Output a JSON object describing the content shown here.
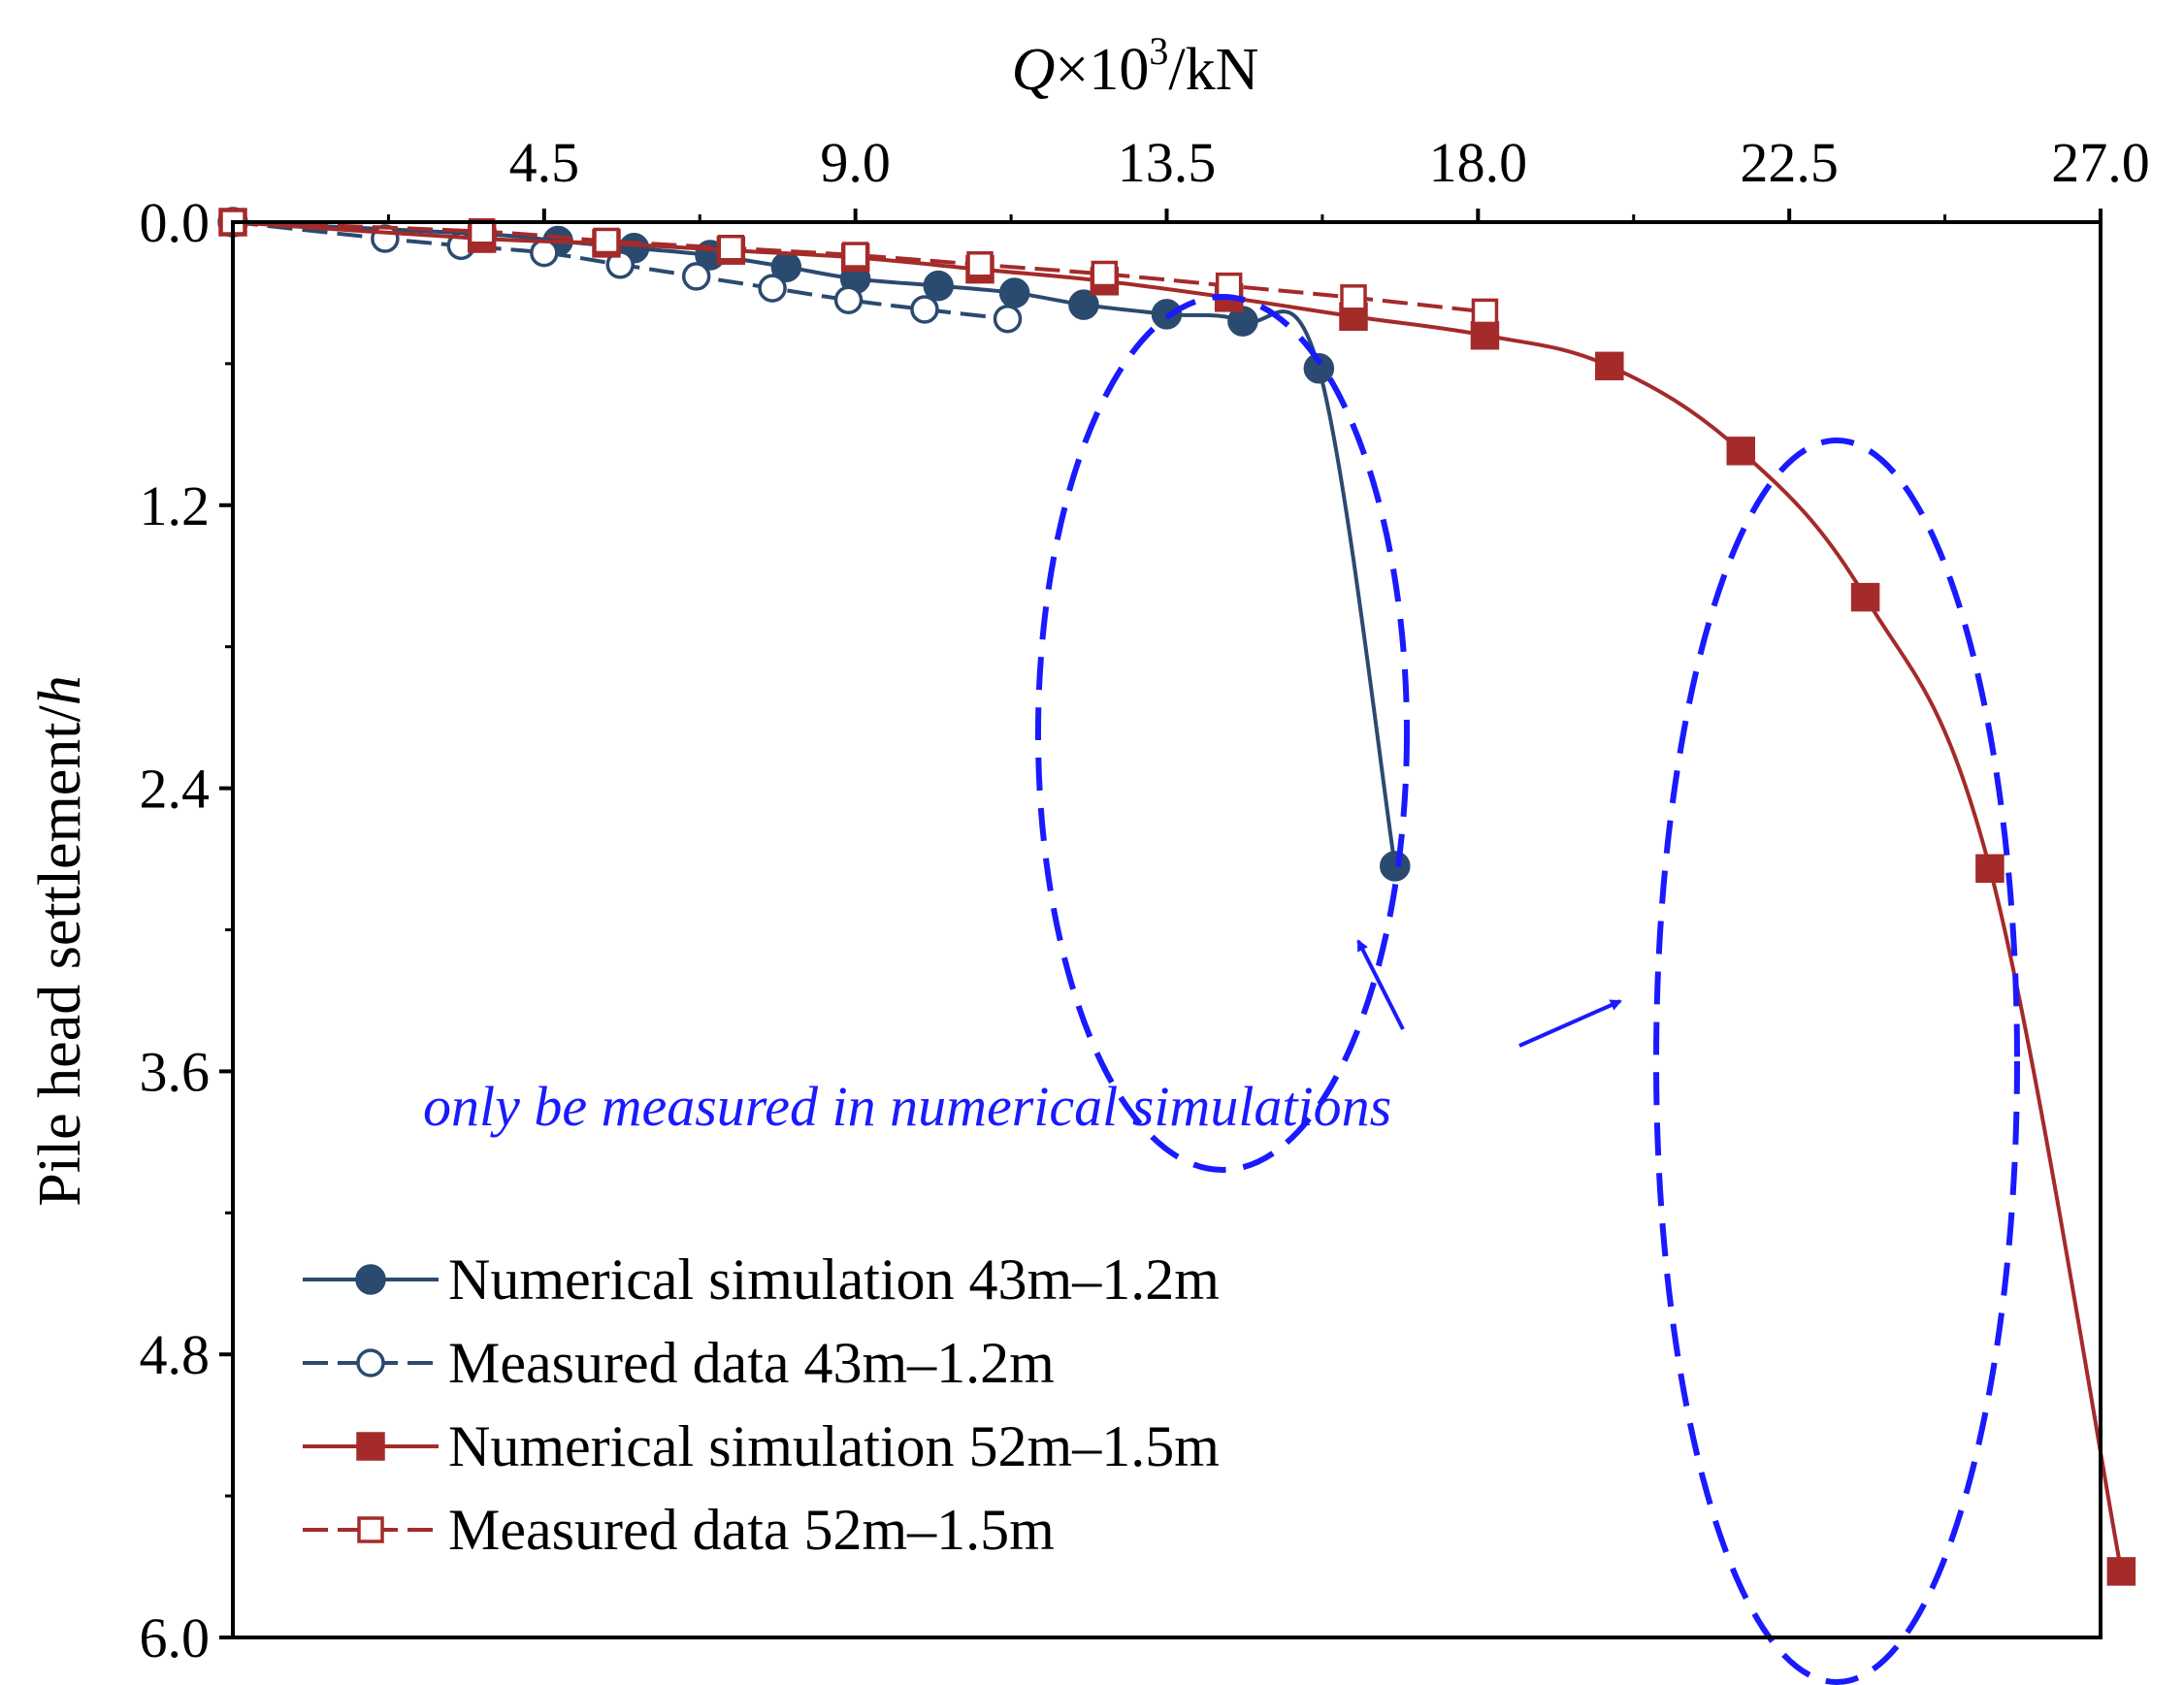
{
  "chart_data": {
    "type": "line",
    "title": "",
    "xlabel": {
      "italic": "Q",
      "mid": "×10",
      "sup": "3",
      "tail": "/kN"
    },
    "ylabel": {
      "main": "Pile head settlement/",
      "italic": "h"
    },
    "xlim": [
      0,
      27
    ],
    "ylim": [
      0,
      6
    ],
    "x_ticks": [
      "4.5",
      "9.0",
      "13.5",
      "18.0",
      "22.5",
      "27.0"
    ],
    "y_ticks": [
      "0.0",
      "1.2",
      "2.4",
      "3.6",
      "4.8",
      "6.0"
    ],
    "x_axis_position": "top",
    "y_axis_inverted": true,
    "annotation": "only be measured in numerical simulations",
    "series": [
      {
        "name": "Numerical simulation 43m–1.2m",
        "color": "#2b4a70",
        "marker": "circle-filled",
        "dash": "solid",
        "x": [
          0,
          3.6,
          4.7,
          5.8,
          6.9,
          8.0,
          9.0,
          10.2,
          11.3,
          12.3,
          13.5,
          14.6,
          15.7,
          16.8
        ],
        "y": [
          0,
          0.05,
          0.08,
          0.11,
          0.14,
          0.19,
          0.24,
          0.27,
          0.3,
          0.35,
          0.39,
          0.42,
          0.62,
          2.73
        ]
      },
      {
        "name": "Measured data 43m–1.2m",
        "color": "#2b4a70",
        "marker": "circle-open",
        "dash": "dashed",
        "x": [
          0,
          2.2,
          3.3,
          4.5,
          5.6,
          6.7,
          7.8,
          8.9,
          10.0,
          11.2
        ],
        "y": [
          0,
          0.07,
          0.1,
          0.13,
          0.18,
          0.23,
          0.28,
          0.33,
          0.37,
          0.41
        ]
      },
      {
        "name": "Numerical simulation 52m–1.5m",
        "color": "#a52a2a",
        "marker": "square-filled",
        "dash": "solid",
        "x": [
          0,
          3.6,
          5.4,
          7.2,
          9.0,
          10.8,
          12.6,
          14.4,
          16.2,
          18.1,
          19.9,
          21.8,
          23.6,
          25.4,
          27.3
        ],
        "y": [
          0,
          0.07,
          0.09,
          0.12,
          0.15,
          0.2,
          0.25,
          0.32,
          0.4,
          0.48,
          0.61,
          0.97,
          1.59,
          2.74,
          5.72
        ]
      },
      {
        "name": "Measured data 52m–1.5m",
        "color": "#a52a2a",
        "marker": "square-open",
        "dash": "dashed",
        "x": [
          0,
          3.6,
          5.4,
          7.2,
          9.0,
          10.8,
          12.6,
          14.4,
          16.2,
          18.1
        ],
        "y": [
          0,
          0.04,
          0.08,
          0.11,
          0.14,
          0.18,
          0.22,
          0.27,
          0.32,
          0.38
        ]
      }
    ],
    "legend": {
      "position": "bottom-left"
    }
  }
}
